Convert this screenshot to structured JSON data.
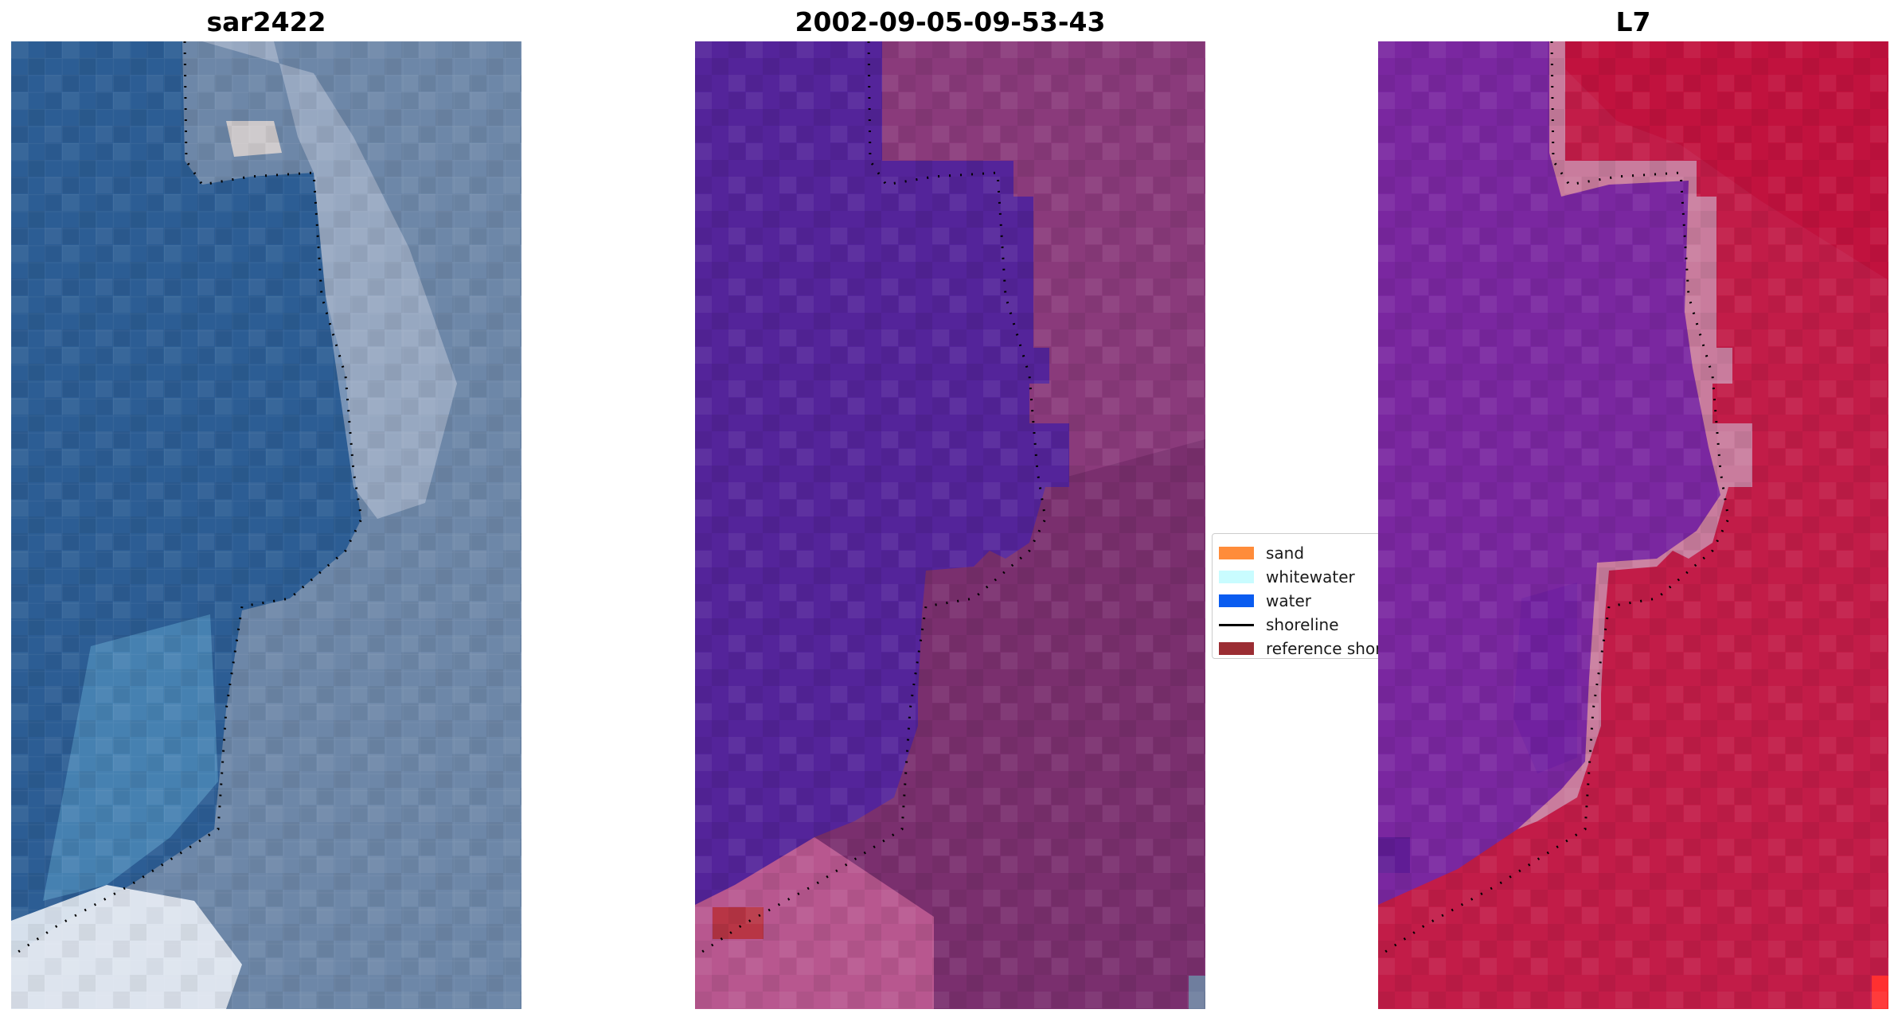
{
  "panels": [
    {
      "title": "sar2422",
      "content": "rgb-image"
    },
    {
      "title": "2002-09-05-09-53-43",
      "content": "classified-image"
    },
    {
      "title": "L7",
      "content": "mndwi-image"
    }
  ],
  "legend": {
    "items": [
      {
        "label": "sand",
        "color": "#ff8c3a",
        "kind": "patch"
      },
      {
        "label": "whitewater",
        "color": "#c9fcff",
        "kind": "patch"
      },
      {
        "label": "water",
        "color": "#0a5cf0",
        "kind": "patch"
      },
      {
        "label": "shoreline",
        "color": "#000000",
        "kind": "line"
      },
      {
        "label": "reference shoreline buffer",
        "color": "#9b2d33",
        "kind": "patch"
      }
    ]
  },
  "colors": {
    "water_class": "#54249a",
    "land_overlay": "#7a2f6e",
    "rgb_water": "#2c5d94",
    "mndwi_water": "#7a27a0",
    "mndwi_land": "#c21c48",
    "shoreline_dots": "#000000"
  }
}
